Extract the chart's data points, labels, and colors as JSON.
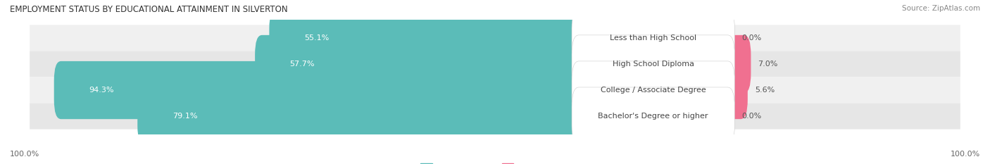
{
  "title": "EMPLOYMENT STATUS BY EDUCATIONAL ATTAINMENT IN SILVERTON",
  "source": "Source: ZipAtlas.com",
  "categories": [
    "Less than High School",
    "High School Diploma",
    "College / Associate Degree",
    "Bachelor's Degree or higher"
  ],
  "labor_force": [
    55.1,
    57.7,
    94.3,
    79.1
  ],
  "unemployed": [
    0.0,
    7.0,
    5.6,
    0.0
  ],
  "labor_force_color": "#5bbcb8",
  "unemployed_color": "#f07090",
  "row_bg_colors": [
    "#f0f0f0",
    "#e6e6e6",
    "#f0f0f0",
    "#e6e6e6"
  ],
  "title_fontsize": 8.5,
  "source_fontsize": 7.5,
  "value_fontsize": 8,
  "cat_label_fontsize": 8,
  "legend_fontsize": 8,
  "left_axis_label": "100.0%",
  "right_axis_label": "100.0%"
}
